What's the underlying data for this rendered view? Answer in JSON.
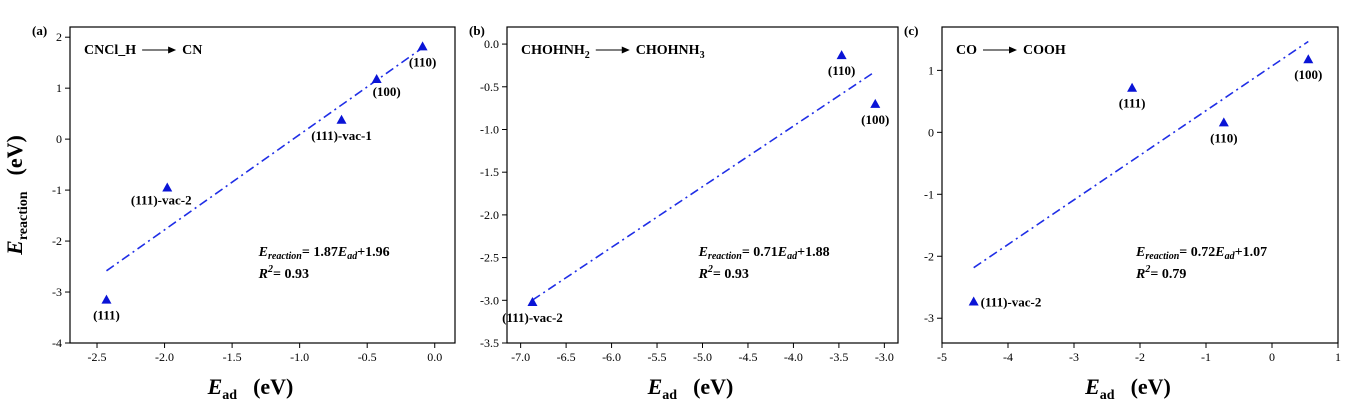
{
  "colors": {
    "marker": "#0a14d6",
    "fit_line": "#1f2ee6",
    "axis": "#000000"
  },
  "ylabel": {
    "main": "E",
    "sub": "reaction",
    "unit": "(eV)"
  },
  "xlabel": {
    "main": "E",
    "sub": "ad",
    "unit": "(eV)"
  },
  "chart_data": [
    {
      "type": "scatter",
      "panel_tag": "(a)",
      "reaction": {
        "from": "CNCl_H",
        "to": "CN"
      },
      "xlim": [
        -2.7,
        0.15
      ],
      "ylim": [
        -4,
        2.2
      ],
      "xticks": [
        -2.5,
        -2.0,
        -1.5,
        -1.0,
        -0.5,
        0.0
      ],
      "xtick_labels": [
        "-2.5",
        "-2.0",
        "-1.5",
        "-1.0",
        "-0.5",
        "0.0"
      ],
      "yticks": [
        -4,
        -3,
        -2,
        -1,
        0,
        1,
        2
      ],
      "ytick_labels": [
        "-4",
        "-3",
        "-2",
        "-1",
        "0",
        "1",
        "2"
      ],
      "points": [
        {
          "x": -2.43,
          "y": -3.15,
          "label": "(111)",
          "lpos": "below"
        },
        {
          "x": -1.98,
          "y": -0.95,
          "label": "(111)-vac-2",
          "lpos": "below-left"
        },
        {
          "x": -0.69,
          "y": 0.38,
          "label": "(111)-vac-1",
          "lpos": "below"
        },
        {
          "x": -0.43,
          "y": 1.18,
          "label": "(100)",
          "lpos": "below-right"
        },
        {
          "x": -0.09,
          "y": 1.82,
          "label": "(110)",
          "lpos": "below"
        }
      ],
      "fit": {
        "slope": 1.87,
        "intercept": 1.96,
        "x_range": [
          -2.43,
          -0.09
        ]
      },
      "equation": {
        "lhs": "E",
        "lhs_sub": "reaction",
        "rhs_pre": "= 1.87",
        "rhs_var": "E",
        "rhs_sub": "ad",
        "rhs_post": "+1.96"
      },
      "r2": {
        "r": "R",
        "exp": "2",
        "value": "= 0.93"
      }
    },
    {
      "type": "scatter",
      "panel_tag": "(b)",
      "reaction": {
        "from": "CHOHNH",
        "from_sub": "2",
        "to": "CHOHNH",
        "to_sub": "3"
      },
      "xlim": [
        -7.15,
        -2.85
      ],
      "ylim": [
        -3.5,
        0.2
      ],
      "xticks": [
        -7.0,
        -6.5,
        -6.0,
        -5.5,
        -5.0,
        -4.5,
        -4.0,
        -3.5,
        -3.0
      ],
      "xtick_labels": [
        "-7.0",
        "-6.5",
        "-6.0",
        "-5.5",
        "-5.0",
        "-4.5",
        "-4.0",
        "-3.5",
        "-3.0"
      ],
      "yticks": [
        -3.5,
        -3.0,
        -2.5,
        -2.0,
        -1.5,
        -1.0,
        -0.5,
        0.0
      ],
      "ytick_labels": [
        "-3.5",
        "-3.0",
        "-2.5",
        "-2.0",
        "-1.5",
        "-1.0",
        "-0.5",
        "0.0"
      ],
      "points": [
        {
          "x": -6.87,
          "y": -3.02,
          "label": "(111)-vac-2",
          "lpos": "below"
        },
        {
          "x": -3.47,
          "y": -0.13,
          "label": "(110)",
          "lpos": "below"
        },
        {
          "x": -3.1,
          "y": -0.7,
          "label": "(100)",
          "lpos": "below"
        }
      ],
      "fit": {
        "slope": 0.71,
        "intercept": 1.88,
        "x_range": [
          -6.87,
          -3.1
        ]
      },
      "equation": {
        "lhs": "E",
        "lhs_sub": "reaction",
        "rhs_pre": "= 0.71",
        "rhs_var": "E",
        "rhs_sub": "ad",
        "rhs_post": "+1.88"
      },
      "r2": {
        "r": "R",
        "exp": "2",
        "value": "= 0.93"
      }
    },
    {
      "type": "scatter",
      "panel_tag": "(c)",
      "reaction": {
        "from": "CO",
        "to": "COOH"
      },
      "xlim": [
        -5,
        1
      ],
      "ylim": [
        -3.4,
        1.7
      ],
      "xticks": [
        -5,
        -4,
        -3,
        -2,
        -1,
        0,
        1
      ],
      "xtick_labels": [
        "-5",
        "-4",
        "-3",
        "-2",
        "-1",
        "0",
        "1"
      ],
      "yticks": [
        -3,
        -2,
        -1,
        0,
        1
      ],
      "ytick_labels": [
        "-3",
        "-2",
        "-1",
        "0",
        "1"
      ],
      "points": [
        {
          "x": -4.52,
          "y": -2.73,
          "label": "(111)-vac-2",
          "lpos": "right"
        },
        {
          "x": -2.12,
          "y": 0.72,
          "label": "(111)",
          "lpos": "below"
        },
        {
          "x": -0.73,
          "y": 0.16,
          "label": "(110)",
          "lpos": "below"
        },
        {
          "x": 0.55,
          "y": 1.18,
          "label": "(100)",
          "lpos": "below"
        }
      ],
      "fit": {
        "slope": 0.72,
        "intercept": 1.07,
        "x_range": [
          -4.52,
          0.55
        ]
      },
      "equation": {
        "lhs": "E",
        "lhs_sub": "reaction",
        "rhs_pre": "= 0.72",
        "rhs_var": "E",
        "rhs_sub": "ad",
        "rhs_post": "+1.07"
      },
      "r2": {
        "r": "R",
        "exp": "2",
        "value": "= 0.79"
      }
    }
  ]
}
